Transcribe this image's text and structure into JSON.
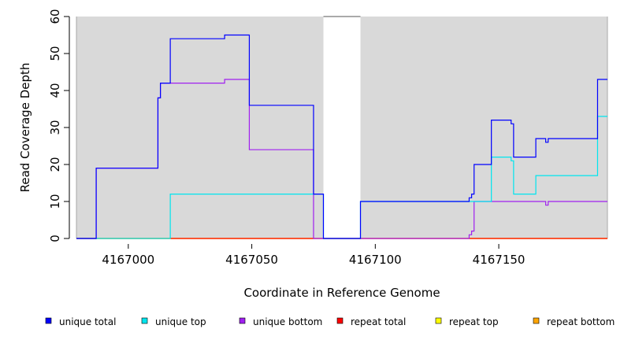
{
  "chart_data": {
    "type": "line",
    "xlabel": "Coordinate in Reference Genome",
    "ylabel": "Read Coverage Depth",
    "xlim": [
      4166979,
      4167194
    ],
    "ylim": [
      0,
      60
    ],
    "xticks": [
      4167000,
      4167050,
      4167100,
      4167150
    ],
    "yticks": [
      0,
      10,
      20,
      30,
      40,
      50,
      60
    ],
    "background_color": "#d9d9d9",
    "gap_region": {
      "x": [
        4167079,
        4167094
      ]
    },
    "grid": false,
    "legend_position": "bottom",
    "series": [
      {
        "name": "unique total",
        "color": "#0000ff",
        "points": [
          [
            4166979,
            0
          ],
          [
            4166987,
            0
          ],
          [
            4166987,
            19
          ],
          [
            4167012,
            19
          ],
          [
            4167012,
            38
          ],
          [
            4167013,
            38
          ],
          [
            4167013,
            42
          ],
          [
            4167017,
            42
          ],
          [
            4167017,
            54
          ],
          [
            4167039,
            54
          ],
          [
            4167039,
            55
          ],
          [
            4167049,
            55
          ],
          [
            4167049,
            36
          ],
          [
            4167075,
            36
          ],
          [
            4167075,
            12
          ],
          [
            4167079,
            12
          ],
          [
            4167079,
            0
          ],
          [
            4167094,
            0
          ],
          [
            4167094,
            10
          ],
          [
            4167138,
            10
          ],
          [
            4167138,
            11
          ],
          [
            4167139,
            11
          ],
          [
            4167139,
            12
          ],
          [
            4167140,
            12
          ],
          [
            4167140,
            20
          ],
          [
            4167147,
            20
          ],
          [
            4167147,
            32
          ],
          [
            4167155,
            32
          ],
          [
            4167155,
            31
          ],
          [
            4167156,
            31
          ],
          [
            4167156,
            22
          ],
          [
            4167165,
            22
          ],
          [
            4167165,
            27
          ],
          [
            4167169,
            27
          ],
          [
            4167169,
            26
          ],
          [
            4167170,
            26
          ],
          [
            4167170,
            27
          ],
          [
            4167190,
            27
          ],
          [
            4167190,
            43
          ],
          [
            4167194,
            43
          ]
        ]
      },
      {
        "name": "unique top",
        "color": "#00e5ee",
        "points": [
          [
            4166979,
            0
          ],
          [
            4167017,
            0
          ],
          [
            4167017,
            12
          ],
          [
            4167079,
            12
          ],
          [
            4167079,
            0
          ],
          [
            4167094,
            0
          ],
          [
            4167094,
            10
          ],
          [
            4167147,
            10
          ],
          [
            4167147,
            22
          ],
          [
            4167155,
            22
          ],
          [
            4167155,
            21
          ],
          [
            4167156,
            21
          ],
          [
            4167156,
            12
          ],
          [
            4167165,
            12
          ],
          [
            4167165,
            17
          ],
          [
            4167190,
            17
          ],
          [
            4167190,
            33
          ],
          [
            4167194,
            33
          ]
        ]
      },
      {
        "name": "unique bottom",
        "color": "#a020f0",
        "points": [
          [
            4166979,
            0
          ],
          [
            4166987,
            0
          ],
          [
            4166987,
            19
          ],
          [
            4167012,
            19
          ],
          [
            4167012,
            38
          ],
          [
            4167013,
            38
          ],
          [
            4167013,
            42
          ],
          [
            4167039,
            42
          ],
          [
            4167039,
            43
          ],
          [
            4167049,
            43
          ],
          [
            4167049,
            24
          ],
          [
            4167075,
            24
          ],
          [
            4167075,
            0
          ],
          [
            4167138,
            0
          ],
          [
            4167138,
            1
          ],
          [
            4167139,
            1
          ],
          [
            4167139,
            2
          ],
          [
            4167140,
            2
          ],
          [
            4167140,
            10
          ],
          [
            4167169,
            10
          ],
          [
            4167169,
            9
          ],
          [
            4167170,
            9
          ],
          [
            4167170,
            10
          ],
          [
            4167194,
            10
          ]
        ]
      },
      {
        "name": "repeat total",
        "color": "#ff0000",
        "points": [
          [
            4166979,
            0
          ],
          [
            4167194,
            0
          ]
        ]
      },
      {
        "name": "repeat top",
        "color": "#ffff00",
        "points": [
          [
            4166979,
            0
          ],
          [
            4167194,
            0
          ]
        ]
      },
      {
        "name": "repeat bottom",
        "color": "#ffa500",
        "points": [
          [
            4166979,
            0
          ],
          [
            4167194,
            0
          ]
        ]
      }
    ]
  }
}
